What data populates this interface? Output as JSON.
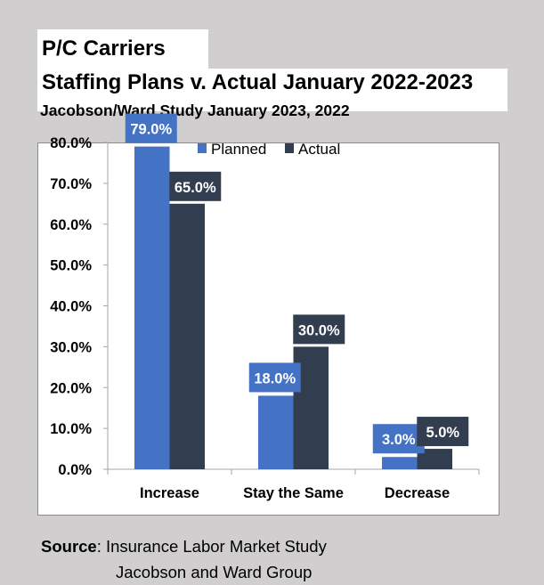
{
  "title_line1": "P/C Carriers",
  "title_line2": "Staffing Plans v. Actual January 2022-2023",
  "subtitle": "Jacobson/Ward Study January 2023, 2022",
  "source": {
    "label": "Source",
    "line1": ":  Insurance Labor Market Study",
    "line2": "Jacobson and Ward Group"
  },
  "chart_data": {
    "type": "bar",
    "title": "Staffing Plans v. Actual January 2022-2023",
    "categories": [
      "Increase",
      "Stay the Same",
      "Decrease"
    ],
    "series": [
      {
        "name": "Planned",
        "values": [
          79.0,
          18.0,
          3.0
        ],
        "color": "#4472c4",
        "labels": [
          "79.0%",
          "18.0%",
          "3.0%"
        ]
      },
      {
        "name": "Actual",
        "values": [
          65.0,
          30.0,
          5.0
        ],
        "color": "#323e4f",
        "labels": [
          "65.0%",
          "30.0%",
          "5.0%"
        ]
      }
    ],
    "ylim": [
      0,
      80
    ],
    "yticks": [
      "0.0%",
      "10.0%",
      "20.0%",
      "30.0%",
      "40.0%",
      "50.0%",
      "60.0%",
      "70.0%",
      "80.0%"
    ],
    "xlabel": "",
    "ylabel": "",
    "legend": "top-center",
    "grid": false
  }
}
